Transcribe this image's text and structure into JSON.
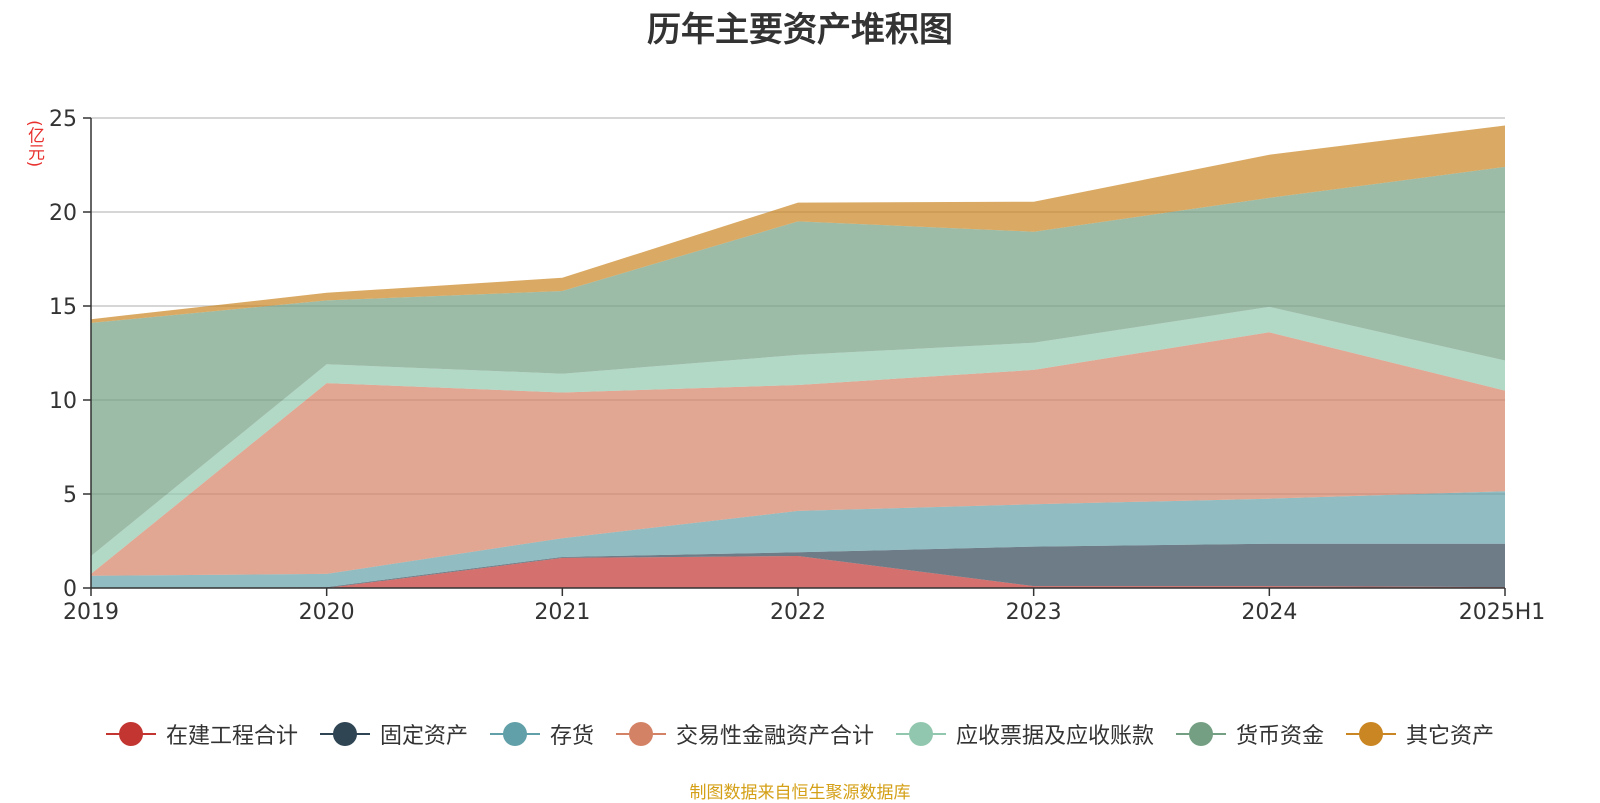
{
  "chart_data": {
    "type": "area",
    "stacked": true,
    "title": "历年主要资产堆积图",
    "unit_label": "(亿元)",
    "x": [
      "2019",
      "2020",
      "2021",
      "2022",
      "2023",
      "2024",
      "2025H1"
    ],
    "ylim": [
      0,
      25
    ],
    "yticks": [
      0,
      5,
      10,
      15,
      20,
      25
    ],
    "grid": true,
    "legend_position": "bottom",
    "series": [
      {
        "name": "在建工程合计",
        "color": "#c23531",
        "values": [
          0,
          0,
          1.6,
          1.7,
          0.1,
          0.1,
          0.05
        ]
      },
      {
        "name": "固定资产",
        "color": "#2f4554",
        "values": [
          0,
          0.05,
          0.05,
          0.2,
          2.1,
          2.25,
          2.3
        ]
      },
      {
        "name": "存货",
        "color": "#61a0a8",
        "values": [
          0.65,
          0.7,
          1.0,
          2.2,
          2.25,
          2.4,
          2.8
        ]
      },
      {
        "name": "交易性金融资产合计",
        "color": "#d48265",
        "values": [
          0.1,
          10.15,
          7.75,
          6.7,
          7.15,
          8.85,
          5.35
        ]
      },
      {
        "name": "应收票据及应收账款",
        "color": "#91c7ae",
        "values": [
          0.95,
          1.0,
          1.0,
          1.6,
          1.45,
          1.35,
          1.6
        ]
      },
      {
        "name": "货币资金",
        "color": "#749f83",
        "values": [
          12.4,
          3.4,
          4.4,
          7.1,
          5.9,
          5.8,
          10.3
        ]
      },
      {
        "name": "其它资产",
        "color": "#ca8622",
        "values": [
          0.2,
          0.4,
          0.7,
          1.0,
          1.6,
          2.3,
          2.2
        ]
      }
    ]
  },
  "footer": "制图数据来自恒生聚源数据库"
}
